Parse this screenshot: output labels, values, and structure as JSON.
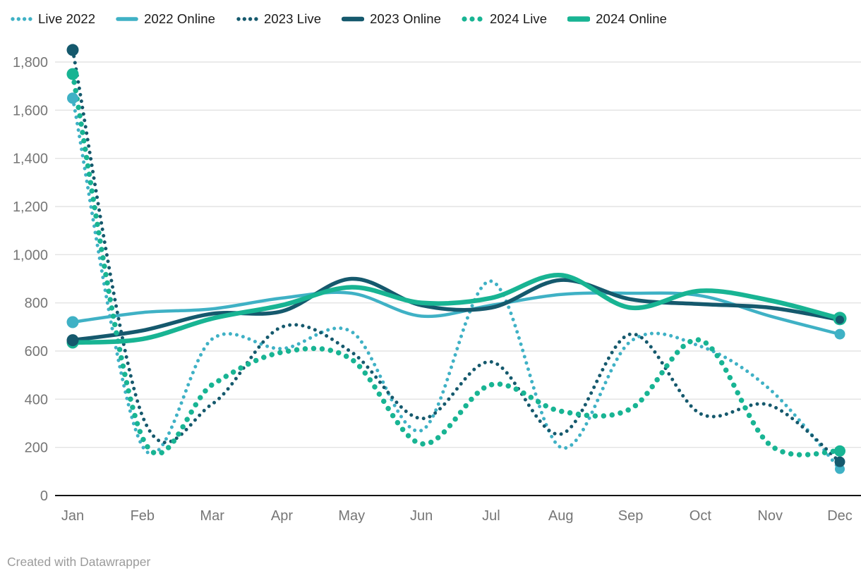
{
  "chart_data": {
    "type": "line",
    "title": "",
    "xlabel": "",
    "ylabel": "",
    "x": [
      "Jan",
      "Feb",
      "Mar",
      "Apr",
      "May",
      "Jun",
      "Jul",
      "Aug",
      "Sep",
      "Oct",
      "Nov",
      "Dec"
    ],
    "ylim": [
      0,
      1800
    ],
    "ytick_step": 200,
    "y_tick_labels": [
      "0",
      "200",
      "400",
      "600",
      "800",
      "1,000",
      "1,200",
      "1,400",
      "1,600",
      "1,800"
    ],
    "grid": true,
    "legend_position": "top",
    "series": [
      {
        "name": "Live 2022",
        "style": "dotted",
        "color": "#3fb1c5",
        "stroke_width": 5,
        "dot_spacing": 9.2,
        "start_dot_r": 8,
        "end_dot_r": 7,
        "values": [
          1650,
          205,
          650,
          610,
          680,
          270,
          890,
          200,
          640,
          620,
          440,
          110
        ]
      },
      {
        "name": "2022 Online",
        "style": "solid",
        "color": "#3fb1c5",
        "stroke_width": 4.5,
        "dot_spacing": 0,
        "start_dot_r": 8.5,
        "end_dot_r": 7.5,
        "values": [
          720,
          760,
          775,
          820,
          840,
          745,
          790,
          835,
          840,
          830,
          745,
          670
        ]
      },
      {
        "name": "2023 Live",
        "style": "dotted",
        "color": "#15596d",
        "stroke_width": 5,
        "dot_spacing": 9.2,
        "start_dot_r": 8.5,
        "end_dot_r": 7.5,
        "values": [
          1850,
          330,
          380,
          700,
          595,
          320,
          555,
          255,
          670,
          340,
          375,
          140
        ]
      },
      {
        "name": "2023 Online",
        "style": "solid",
        "color": "#15596d",
        "stroke_width": 5.5,
        "dot_spacing": 0,
        "start_dot_r": 8.5,
        "end_dot_r": 6,
        "values": [
          645,
          685,
          755,
          765,
          900,
          790,
          780,
          895,
          815,
          795,
          780,
          730
        ]
      },
      {
        "name": "2024 Live",
        "style": "dotted",
        "color": "#18b493",
        "stroke_width": 7.5,
        "dot_spacing": 12,
        "start_dot_r": 8.5,
        "end_dot_r": 8,
        "values": [
          1750,
          240,
          460,
          595,
          565,
          215,
          460,
          350,
          360,
          645,
          210,
          185
        ]
      },
      {
        "name": "2024 Online",
        "style": "solid",
        "color": "#18b493",
        "stroke_width": 6.5,
        "dot_spacing": 0,
        "start_dot_r": 8.5,
        "end_dot_r": 9.5,
        "values": [
          635,
          650,
          735,
          790,
          865,
          800,
          820,
          915,
          780,
          850,
          810,
          735
        ]
      }
    ]
  },
  "colors": {
    "cyan_2022": "#3fb1c5",
    "navy_2023": "#15596d",
    "green_2024": "#18b493",
    "gridline": "#e3e3e3",
    "axis_line": "#141414",
    "tick_label": "#767676",
    "legend_text": "#1a1a1a",
    "footer_text": "#9b9b9b",
    "background": "#ffffff"
  },
  "footer": {
    "text": "Created with Datawrapper"
  }
}
